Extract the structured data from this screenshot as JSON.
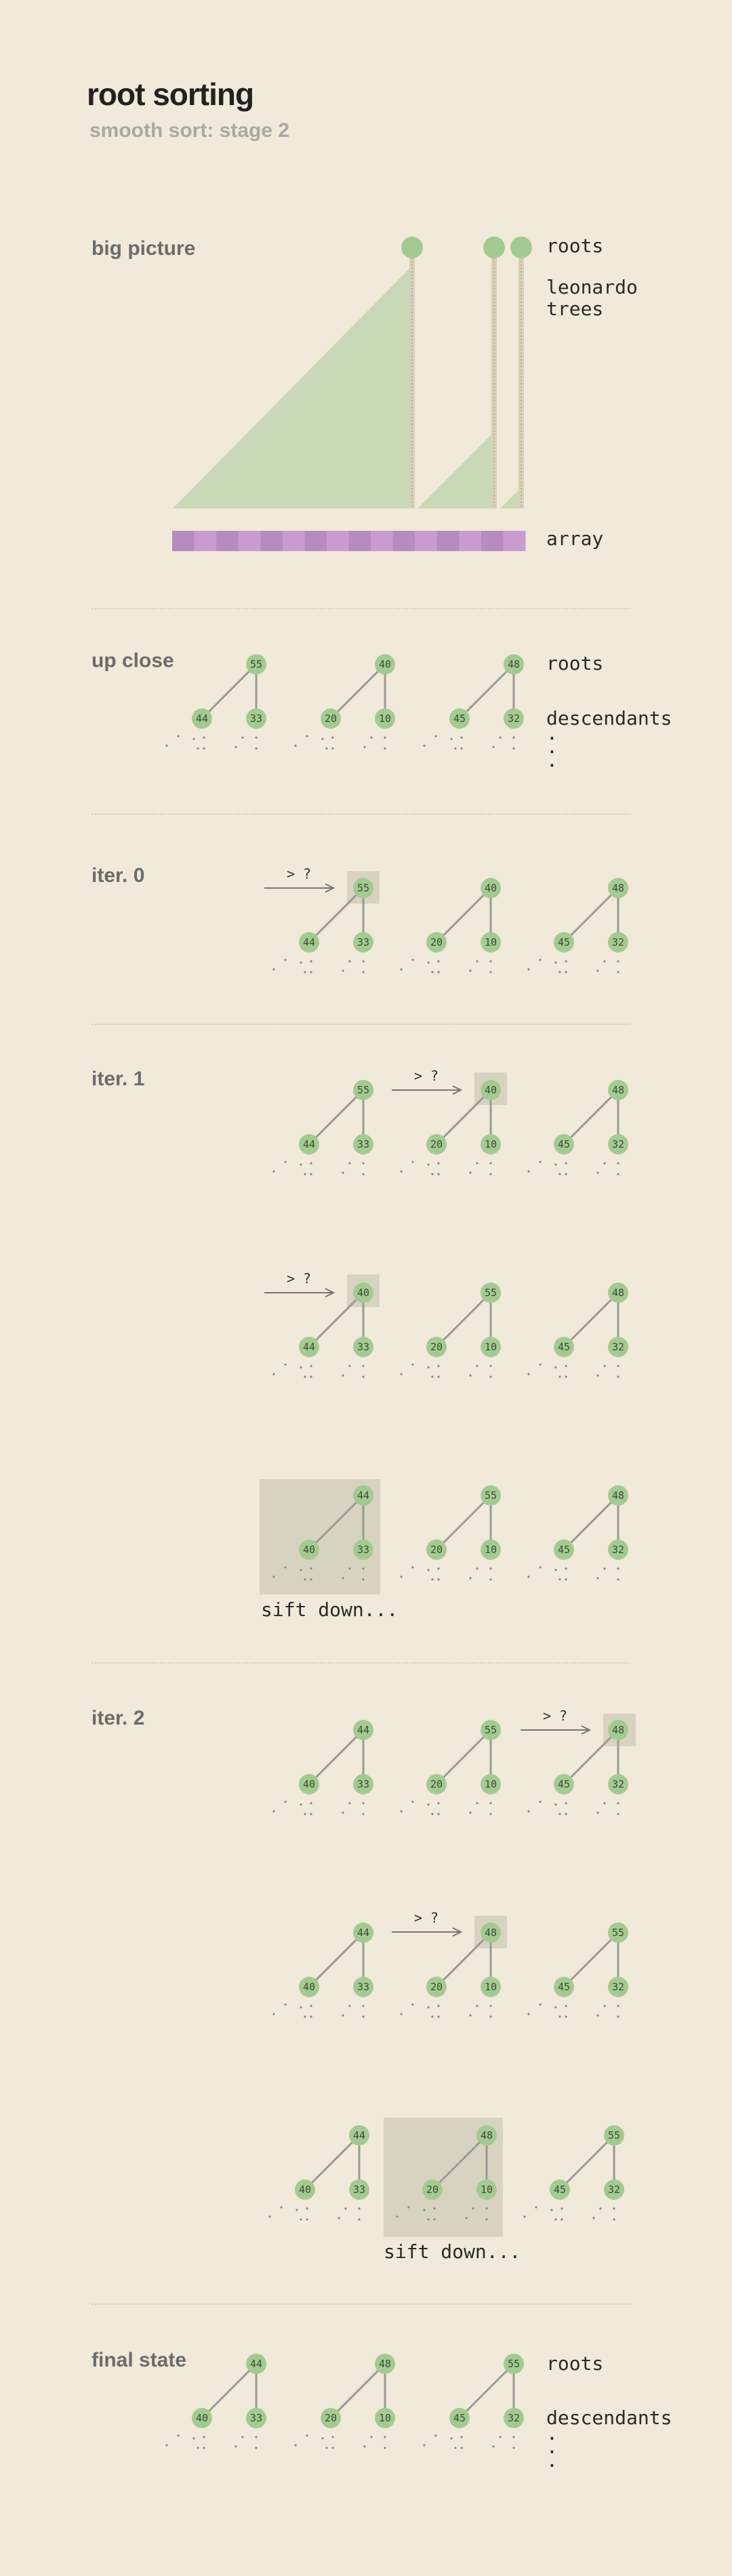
{
  "header": {
    "title": "root sorting",
    "subtitle": "smooth sort: stage 2"
  },
  "sections": {
    "big_picture": "big picture",
    "up_close": "up close",
    "iter0": "iter. 0",
    "iter1": "iter. 1",
    "iter2": "iter. 2",
    "final": "final state"
  },
  "labels": {
    "roots": "roots",
    "leonardo_trees": "leonardo\ntrees",
    "array": "array",
    "descendants": "descendants",
    "dots": ".\n.\n.",
    "compare": "> ?",
    "sift_down": "sift down..."
  },
  "colors": {
    "background": "#f1e9d9",
    "node": "#a3cb91",
    "node_text": "#3b4a33",
    "edge": "#9a9a95",
    "tree_fill": "#c9d9b8",
    "highlight": "#d8d3c1",
    "array_a": "#b68bbe",
    "array_b": "#c99ccf"
  },
  "diagrams": {
    "up_close": [
      [
        55,
        44,
        33
      ],
      [
        40,
        20,
        10
      ],
      [
        48,
        45,
        32
      ]
    ],
    "iter0": [
      [
        55,
        44,
        33
      ],
      [
        40,
        20,
        10
      ],
      [
        48,
        45,
        32
      ]
    ],
    "iter1_a": [
      [
        55,
        44,
        33
      ],
      [
        40,
        20,
        10
      ],
      [
        48,
        45,
        32
      ]
    ],
    "iter1_b": [
      [
        40,
        44,
        33
      ],
      [
        55,
        20,
        10
      ],
      [
        48,
        45,
        32
      ]
    ],
    "iter1_c": [
      [
        44,
        40,
        33
      ],
      [
        55,
        20,
        10
      ],
      [
        48,
        45,
        32
      ]
    ],
    "iter2_a": [
      [
        44,
        40,
        33
      ],
      [
        55,
        20,
        10
      ],
      [
        48,
        45,
        32
      ]
    ],
    "iter2_b": [
      [
        44,
        40,
        33
      ],
      [
        48,
        20,
        10
      ],
      [
        55,
        45,
        32
      ]
    ],
    "iter2_c": [
      [
        44,
        40,
        33
      ],
      [
        48,
        20,
        10
      ],
      [
        55,
        45,
        32
      ]
    ],
    "final": [
      [
        44,
        40,
        33
      ],
      [
        48,
        20,
        10
      ],
      [
        55,
        45,
        32
      ]
    ]
  }
}
